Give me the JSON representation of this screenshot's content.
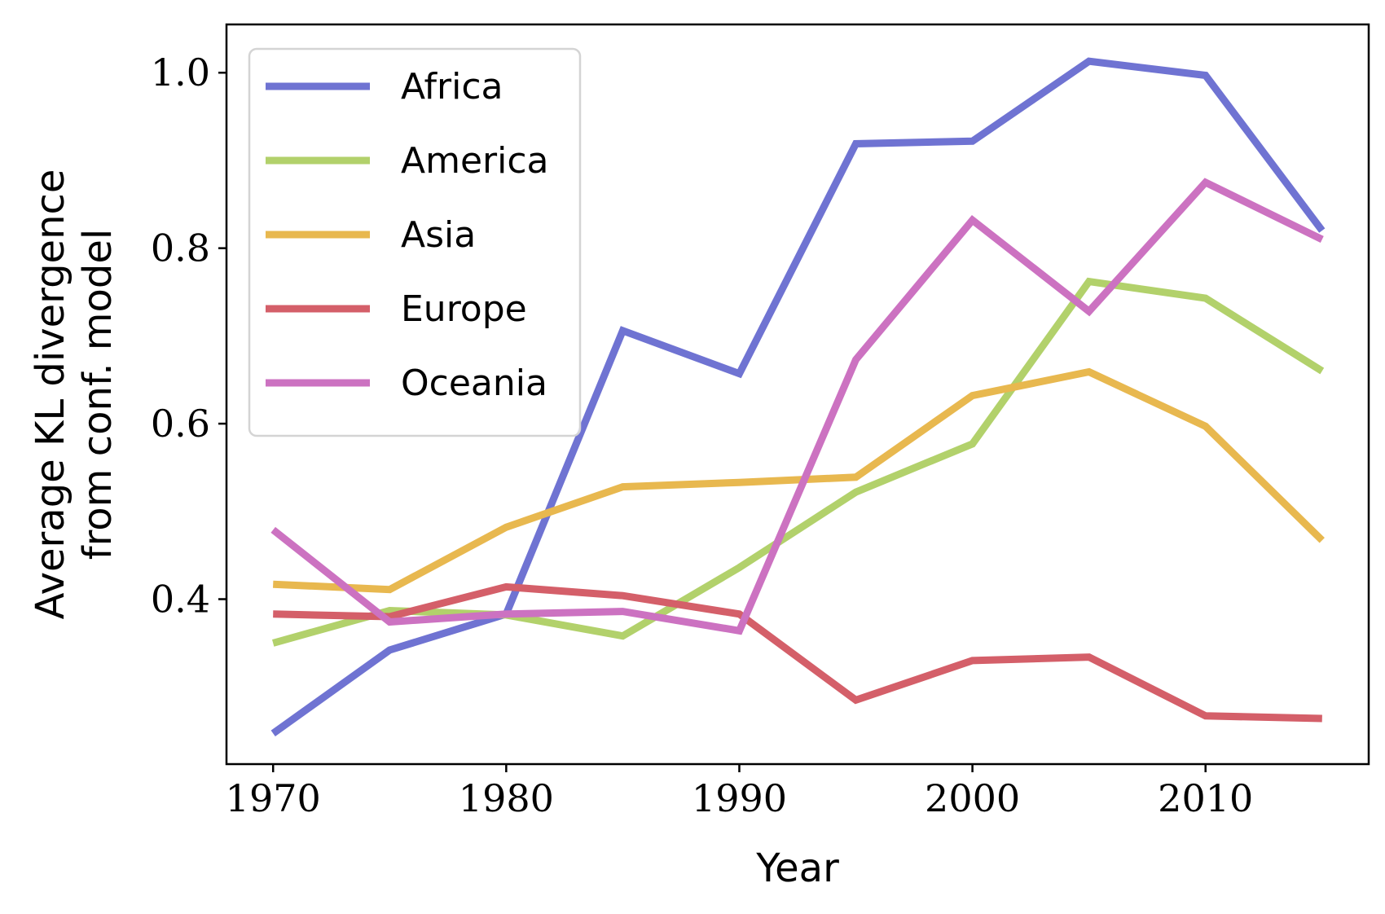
{
  "chart_data": {
    "type": "line",
    "title": "",
    "xlabel": "Year",
    "ylabel_lines": [
      "Average KL divergence",
      "from conf. model"
    ],
    "x": [
      1970,
      1975,
      1980,
      1985,
      1990,
      1995,
      2000,
      2005,
      2010,
      2015
    ],
    "xlim": [
      1968,
      2017
    ],
    "ylim": [
      0.212,
      1.055
    ],
    "xticks": [
      1970,
      1980,
      1990,
      2000,
      2010
    ],
    "xtick_labels": [
      "1970",
      "1980",
      "1990",
      "2000",
      "2010"
    ],
    "yticks": [
      0.4,
      0.6,
      0.8,
      1.0
    ],
    "ytick_labels": [
      "0.4",
      "0.6",
      "0.8",
      "1.0"
    ],
    "grid": false,
    "legend_position": "top-left",
    "series": [
      {
        "name": "Africa",
        "color": "#6f73d2",
        "values": [
          0.247,
          0.342,
          0.383,
          0.706,
          0.657,
          0.919,
          0.922,
          1.013,
          0.997,
          0.82
        ]
      },
      {
        "name": "America",
        "color": "#b2d16b",
        "values": [
          0.35,
          0.387,
          0.382,
          0.358,
          0.436,
          0.522,
          0.577,
          0.762,
          0.743,
          0.66
        ]
      },
      {
        "name": "Asia",
        "color": "#e8b84f",
        "values": [
          0.417,
          0.411,
          0.482,
          0.528,
          0.533,
          0.539,
          0.632,
          0.659,
          0.597,
          0.467
        ]
      },
      {
        "name": "Europe",
        "color": "#d45f69",
        "values": [
          0.383,
          0.38,
          0.414,
          0.404,
          0.383,
          0.285,
          0.33,
          0.334,
          0.267,
          0.264
        ]
      },
      {
        "name": "Oceania",
        "color": "#cc72c1",
        "values": [
          0.479,
          0.374,
          0.383,
          0.386,
          0.364,
          0.673,
          0.832,
          0.728,
          0.875,
          0.81
        ]
      }
    ]
  }
}
